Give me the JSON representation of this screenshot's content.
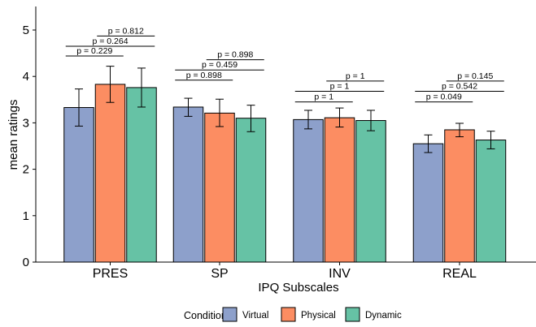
{
  "chart_data": {
    "type": "bar",
    "xlabel": "IPQ Subscales",
    "ylabel": "mean ratings",
    "ylim": [
      0,
      5.5
    ],
    "yticks": [
      0,
      1,
      2,
      3,
      4,
      5
    ],
    "categories": [
      "PRES",
      "SP",
      "INV",
      "REAL"
    ],
    "series": [
      {
        "name": "Virtual",
        "color": "#8DA0CB",
        "values": [
          3.33,
          3.34,
          3.07,
          2.55
        ],
        "err_low": [
          2.93,
          3.14,
          2.87,
          2.36
        ],
        "err_high": [
          3.73,
          3.53,
          3.27,
          2.74
        ]
      },
      {
        "name": "Physical",
        "color": "#FC8D62",
        "values": [
          3.83,
          3.21,
          3.11,
          2.85
        ],
        "err_low": [
          3.44,
          2.92,
          2.91,
          2.7
        ],
        "err_high": [
          4.22,
          3.51,
          3.32,
          2.99
        ]
      },
      {
        "name": "Dynamic",
        "color": "#66C2A5",
        "values": [
          3.76,
          3.1,
          3.05,
          2.63
        ],
        "err_low": [
          3.34,
          2.81,
          2.83,
          2.44
        ],
        "err_high": [
          4.18,
          3.38,
          3.27,
          2.82
        ]
      }
    ],
    "comparisons": [
      {
        "category": "PRES",
        "pairs": [
          {
            "from": 0,
            "to": 1,
            "label": "p = 0.229",
            "y": 4.44
          },
          {
            "from": 0,
            "to": 2,
            "label": "p = 0.264",
            "y": 4.65
          },
          {
            "from": 1,
            "to": 2,
            "label": "p = 0.812",
            "y": 4.87
          }
        ]
      },
      {
        "category": "SP",
        "pairs": [
          {
            "from": 0,
            "to": 1,
            "label": "p = 0.898",
            "y": 3.92
          },
          {
            "from": 0,
            "to": 2,
            "label": "p = 0.459",
            "y": 4.14
          },
          {
            "from": 1,
            "to": 2,
            "label": "p = 0.898",
            "y": 4.36
          }
        ]
      },
      {
        "category": "INV",
        "pairs": [
          {
            "from": 0,
            "to": 1,
            "label": "p = 1",
            "y": 3.45
          },
          {
            "from": 0,
            "to": 2,
            "label": "p = 1",
            "y": 3.68
          },
          {
            "from": 1,
            "to": 2,
            "label": "p = 1",
            "y": 3.9
          }
        ]
      },
      {
        "category": "REAL",
        "pairs": [
          {
            "from": 0,
            "to": 1,
            "label": "p = 0.049",
            "y": 3.45
          },
          {
            "from": 0,
            "to": 2,
            "label": "p = 0.542",
            "y": 3.68
          },
          {
            "from": 1,
            "to": 2,
            "label": "p = 0.145",
            "y": 3.9
          }
        ]
      }
    ],
    "legend": {
      "title": "Condition",
      "position": "bottom",
      "items": [
        "Virtual",
        "Physical",
        "Dynamic"
      ]
    },
    "grid": false
  }
}
